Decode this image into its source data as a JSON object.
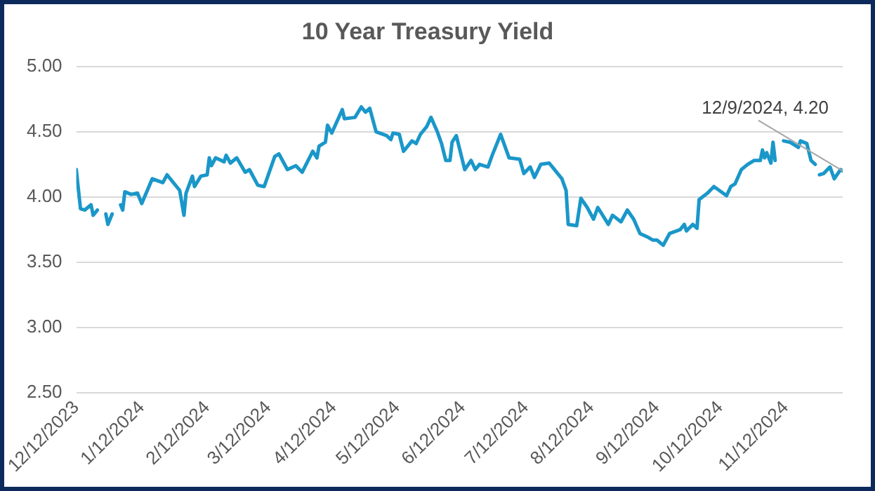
{
  "chart_data": {
    "type": "line",
    "title": "10 Year Treasury Yield",
    "x": [
      "2023-12-12",
      "2023-12-14",
      "2023-12-16",
      "2023-12-19",
      "2023-12-20",
      "2023-12-22",
      "2023-12-24",
      "2023-12-26",
      "2023-12-27",
      "2023-12-29",
      "2023-12-31",
      "2024-01-02",
      "2024-01-03",
      "2024-01-04",
      "2024-01-07",
      "2024-01-10",
      "2024-01-12",
      "2024-01-17",
      "2024-01-22",
      "2024-01-24",
      "2024-01-30",
      "2024-02-01",
      "2024-02-02",
      "2024-02-05",
      "2024-02-06",
      "2024-02-09",
      "2024-02-12",
      "2024-02-13",
      "2024-02-14",
      "2024-02-16",
      "2024-02-20",
      "2024-02-21",
      "2024-02-23",
      "2024-02-26",
      "2024-03-01",
      "2024-03-03",
      "2024-03-07",
      "2024-03-10",
      "2024-03-15",
      "2024-03-17",
      "2024-03-21",
      "2024-03-25",
      "2024-03-28",
      "2024-04-02",
      "2024-04-04",
      "2024-04-05",
      "2024-04-08",
      "2024-04-09",
      "2024-04-11",
      "2024-04-16",
      "2024-04-17",
      "2024-04-22",
      "2024-04-25",
      "2024-04-27",
      "2024-04-29",
      "2024-05-02",
      "2024-05-07",
      "2024-05-09",
      "2024-05-10",
      "2024-05-13",
      "2024-05-15",
      "2024-05-19",
      "2024-05-21",
      "2024-05-23",
      "2024-05-26",
      "2024-05-28",
      "2024-05-31",
      "2024-06-02",
      "2024-06-04",
      "2024-06-06",
      "2024-06-07",
      "2024-06-09",
      "2024-06-13",
      "2024-06-16",
      "2024-06-18",
      "2024-06-20",
      "2024-06-24",
      "2024-06-26",
      "2024-06-30",
      "2024-07-04",
      "2024-07-09",
      "2024-07-11",
      "2024-07-14",
      "2024-07-16",
      "2024-07-19",
      "2024-07-23",
      "2024-07-26",
      "2024-07-29",
      "2024-07-31",
      "2024-08-01",
      "2024-08-05",
      "2024-08-07",
      "2024-08-10",
      "2024-08-13",
      "2024-08-15",
      "2024-08-20",
      "2024-08-22",
      "2024-08-26",
      "2024-08-29",
      "2024-09-01",
      "2024-09-04",
      "2024-09-08",
      "2024-09-10",
      "2024-09-12",
      "2024-09-15",
      "2024-09-18",
      "2024-09-23",
      "2024-09-25",
      "2024-09-26",
      "2024-09-29",
      "2024-10-01",
      "2024-10-02",
      "2024-10-06",
      "2024-10-09",
      "2024-10-15",
      "2024-10-17",
      "2024-10-19",
      "2024-10-22",
      "2024-10-25",
      "2024-10-28",
      "2024-10-31",
      "2024-11-01",
      "2024-11-02",
      "2024-11-03",
      "2024-11-05",
      "2024-11-06",
      "2024-11-07",
      "2024-11-09",
      "2024-11-11",
      "2024-11-14",
      "2024-11-18",
      "2024-11-19",
      "2024-11-22",
      "2024-11-24",
      "2024-11-26",
      "2024-11-27",
      "2024-11-28",
      "2024-11-30",
      "2024-12-03",
      "2024-12-05",
      "2024-12-08",
      "2024-12-09"
    ],
    "series": [
      {
        "color": "#1a97c9",
        "values": [
          4.21,
          3.91,
          3.9,
          3.94,
          3.86,
          3.9,
          null,
          3.87,
          3.79,
          3.87,
          null,
          3.94,
          3.9,
          4.04,
          4.02,
          4.03,
          3.95,
          4.14,
          4.11,
          4.17,
          4.05,
          3.86,
          4.03,
          4.16,
          4.08,
          4.16,
          4.17,
          4.3,
          4.24,
          4.3,
          4.27,
          4.32,
          4.26,
          4.3,
          4.19,
          4.21,
          4.09,
          4.08,
          4.31,
          4.33,
          4.21,
          4.24,
          4.19,
          4.35,
          4.3,
          4.39,
          4.42,
          4.55,
          4.49,
          4.67,
          4.6,
          4.61,
          4.69,
          4.65,
          4.68,
          4.5,
          4.47,
          4.44,
          4.49,
          4.48,
          4.35,
          4.43,
          4.41,
          4.48,
          4.54,
          4.61,
          4.5,
          4.41,
          4.28,
          4.28,
          4.42,
          4.47,
          4.21,
          4.28,
          4.21,
          4.25,
          4.23,
          4.32,
          4.48,
          4.3,
          4.29,
          4.18,
          4.23,
          4.15,
          4.25,
          4.26,
          4.2,
          4.14,
          4.05,
          3.79,
          3.78,
          3.99,
          3.92,
          3.83,
          3.92,
          3.79,
          3.86,
          3.81,
          3.9,
          3.83,
          3.72,
          3.69,
          3.67,
          3.67,
          3.63,
          3.72,
          3.75,
          3.79,
          3.74,
          3.79,
          3.76,
          3.98,
          4.03,
          4.08,
          4.01,
          4.08,
          4.1,
          4.21,
          4.25,
          4.28,
          4.28,
          4.36,
          4.3,
          4.34,
          4.26,
          4.42,
          4.28,
          null,
          4.43,
          4.42,
          4.38,
          4.43,
          4.41,
          4.28,
          4.25,
          null,
          4.17,
          4.18,
          4.23,
          4.14,
          4.21,
          4.2
        ]
      }
    ],
    "xlim": [
      "2023-12-12",
      "2024-12-09"
    ],
    "xticks": [
      {
        "value": "2023-12-12",
        "label": "12/12/2023"
      },
      {
        "value": "2024-01-12",
        "label": "1/12/2024"
      },
      {
        "value": "2024-02-12",
        "label": "2/12/2024"
      },
      {
        "value": "2024-03-12",
        "label": "3/12/2024"
      },
      {
        "value": "2024-04-12",
        "label": "4/12/2024"
      },
      {
        "value": "2024-05-12",
        "label": "5/12/2024"
      },
      {
        "value": "2024-06-12",
        "label": "6/12/2024"
      },
      {
        "value": "2024-07-12",
        "label": "7/12/2024"
      },
      {
        "value": "2024-08-12",
        "label": "8/12/2024"
      },
      {
        "value": "2024-09-12",
        "label": "9/12/2024"
      },
      {
        "value": "2024-10-12",
        "label": "10/12/2024"
      },
      {
        "value": "2024-11-12",
        "label": "11/12/2024"
      }
    ],
    "ylim": [
      2.5,
      5.0
    ],
    "yticks": [
      {
        "value": 2.5,
        "label": "2.50"
      },
      {
        "value": 3.0,
        "label": "3.00"
      },
      {
        "value": 3.5,
        "label": "3.50"
      },
      {
        "value": 4.0,
        "label": "4.00"
      },
      {
        "value": 4.5,
        "label": "4.50"
      },
      {
        "value": 5.0,
        "label": "5.00"
      }
    ],
    "grid": "y",
    "legend": false,
    "marker": "none",
    "line_style": "solid",
    "annotations": [
      {
        "text": "12/9/2024, 4.20",
        "x": "2024-12-09",
        "y": 4.2
      }
    ]
  }
}
